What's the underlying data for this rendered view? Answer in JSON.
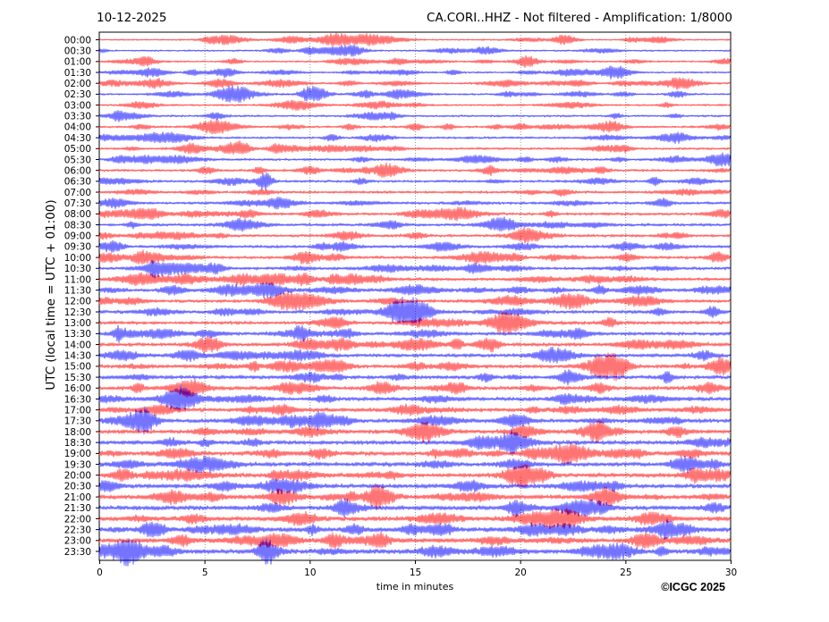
{
  "header": {
    "date": "10-12-2025",
    "title": "CA.CORI..HHZ - Not filtered - Amplification: 1/8000"
  },
  "footer": {
    "copyright": "©ICGC 2025"
  },
  "chart_data": {
    "type": "line",
    "title": "CA.CORI..HHZ - Not filtered - Amplification: 1/8000",
    "xlabel": "time in minutes",
    "ylabel": "UTC (local time = UTC + 01:00)",
    "xlim": [
      0,
      30
    ],
    "xticks": [
      "0",
      "5",
      "10",
      "15",
      "20",
      "25",
      "30"
    ],
    "grid": true,
    "colors": [
      "#ff0000",
      "#0000ff"
    ],
    "series": [
      {
        "label": "00:00",
        "color": "#ff0000"
      },
      {
        "label": "00:30",
        "color": "#0000ff"
      },
      {
        "label": "01:00",
        "color": "#ff0000"
      },
      {
        "label": "01:30",
        "color": "#0000ff"
      },
      {
        "label": "02:00",
        "color": "#ff0000"
      },
      {
        "label": "02:30",
        "color": "#0000ff"
      },
      {
        "label": "03:00",
        "color": "#ff0000"
      },
      {
        "label": "03:30",
        "color": "#0000ff"
      },
      {
        "label": "04:00",
        "color": "#ff0000"
      },
      {
        "label": "04:30",
        "color": "#0000ff"
      },
      {
        "label": "05:00",
        "color": "#ff0000"
      },
      {
        "label": "05:30",
        "color": "#0000ff"
      },
      {
        "label": "06:00",
        "color": "#ff0000"
      },
      {
        "label": "06:30",
        "color": "#0000ff"
      },
      {
        "label": "07:00",
        "color": "#ff0000"
      },
      {
        "label": "07:30",
        "color": "#0000ff"
      },
      {
        "label": "08:00",
        "color": "#ff0000"
      },
      {
        "label": "08:30",
        "color": "#0000ff"
      },
      {
        "label": "09:00",
        "color": "#ff0000"
      },
      {
        "label": "09:30",
        "color": "#0000ff"
      },
      {
        "label": "10:00",
        "color": "#ff0000"
      },
      {
        "label": "10:30",
        "color": "#0000ff"
      },
      {
        "label": "11:00",
        "color": "#ff0000"
      },
      {
        "label": "11:30",
        "color": "#0000ff"
      },
      {
        "label": "12:00",
        "color": "#ff0000"
      },
      {
        "label": "12:30",
        "color": "#0000ff"
      },
      {
        "label": "13:00",
        "color": "#ff0000"
      },
      {
        "label": "13:30",
        "color": "#0000ff"
      },
      {
        "label": "14:00",
        "color": "#ff0000"
      },
      {
        "label": "14:30",
        "color": "#0000ff"
      },
      {
        "label": "15:00",
        "color": "#ff0000"
      },
      {
        "label": "15:30",
        "color": "#0000ff"
      },
      {
        "label": "16:00",
        "color": "#ff0000"
      },
      {
        "label": "16:30",
        "color": "#0000ff"
      },
      {
        "label": "17:00",
        "color": "#ff0000"
      },
      {
        "label": "17:30",
        "color": "#0000ff"
      },
      {
        "label": "18:00",
        "color": "#ff0000"
      },
      {
        "label": "18:30",
        "color": "#0000ff"
      },
      {
        "label": "19:00",
        "color": "#ff0000"
      },
      {
        "label": "19:30",
        "color": "#0000ff"
      },
      {
        "label": "20:00",
        "color": "#ff0000"
      },
      {
        "label": "20:30",
        "color": "#0000ff"
      },
      {
        "label": "21:00",
        "color": "#ff0000"
      },
      {
        "label": "21:30",
        "color": "#0000ff"
      },
      {
        "label": "22:00",
        "color": "#ff0000"
      },
      {
        "label": "22:30",
        "color": "#0000ff"
      },
      {
        "label": "23:00",
        "color": "#ff0000"
      },
      {
        "label": "23:30",
        "color": "#0000ff"
      }
    ]
  }
}
